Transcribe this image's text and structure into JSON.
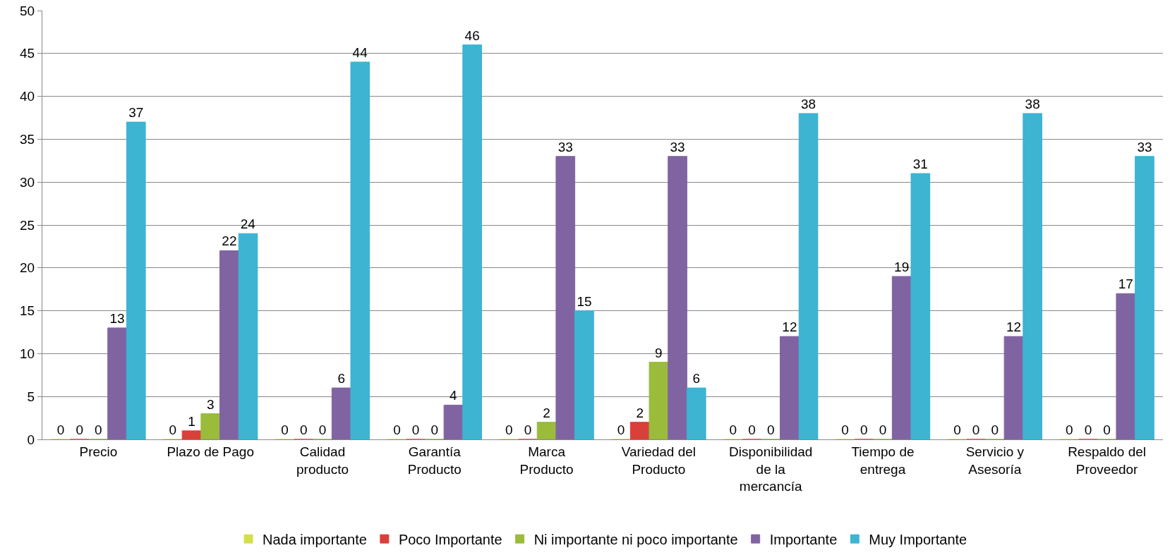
{
  "chart_data": {
    "type": "bar",
    "categories": [
      "Precio",
      "Plazo de Pago",
      "Calidad producto",
      "Garantía Producto",
      "Marca Producto",
      "Variedad del Producto",
      "Disponibilidad de la mercancía",
      "Tiempo de entrega",
      "Servicio y Asesoría",
      "Respaldo del Proveedor"
    ],
    "series": [
      {
        "name": "Nada importante",
        "color": "#d4e04a",
        "values": [
          0,
          0,
          0,
          0,
          0,
          0,
          0,
          0,
          0,
          0
        ]
      },
      {
        "name": "Poco Importante",
        "color": "#d9403a",
        "values": [
          0,
          1,
          0,
          0,
          0,
          2,
          0,
          0,
          0,
          0
        ]
      },
      {
        "name": "Ni importante ni poco importante",
        "color": "#9bbb3b",
        "values": [
          0,
          3,
          0,
          0,
          2,
          9,
          0,
          0,
          0,
          0
        ]
      },
      {
        "name": "Importante",
        "color": "#8064a2",
        "values": [
          13,
          22,
          6,
          4,
          33,
          33,
          12,
          19,
          12,
          17
        ]
      },
      {
        "name": "Muy Importante",
        "color": "#3cb4d2",
        "values": [
          37,
          24,
          44,
          46,
          15,
          6,
          38,
          31,
          38,
          33
        ]
      }
    ],
    "ylim": [
      0,
      50
    ],
    "yticks": [
      0,
      5,
      10,
      15,
      20,
      25,
      30,
      35,
      40,
      45,
      50
    ],
    "grid": "y",
    "legend": "bottom",
    "data_labels": true
  }
}
